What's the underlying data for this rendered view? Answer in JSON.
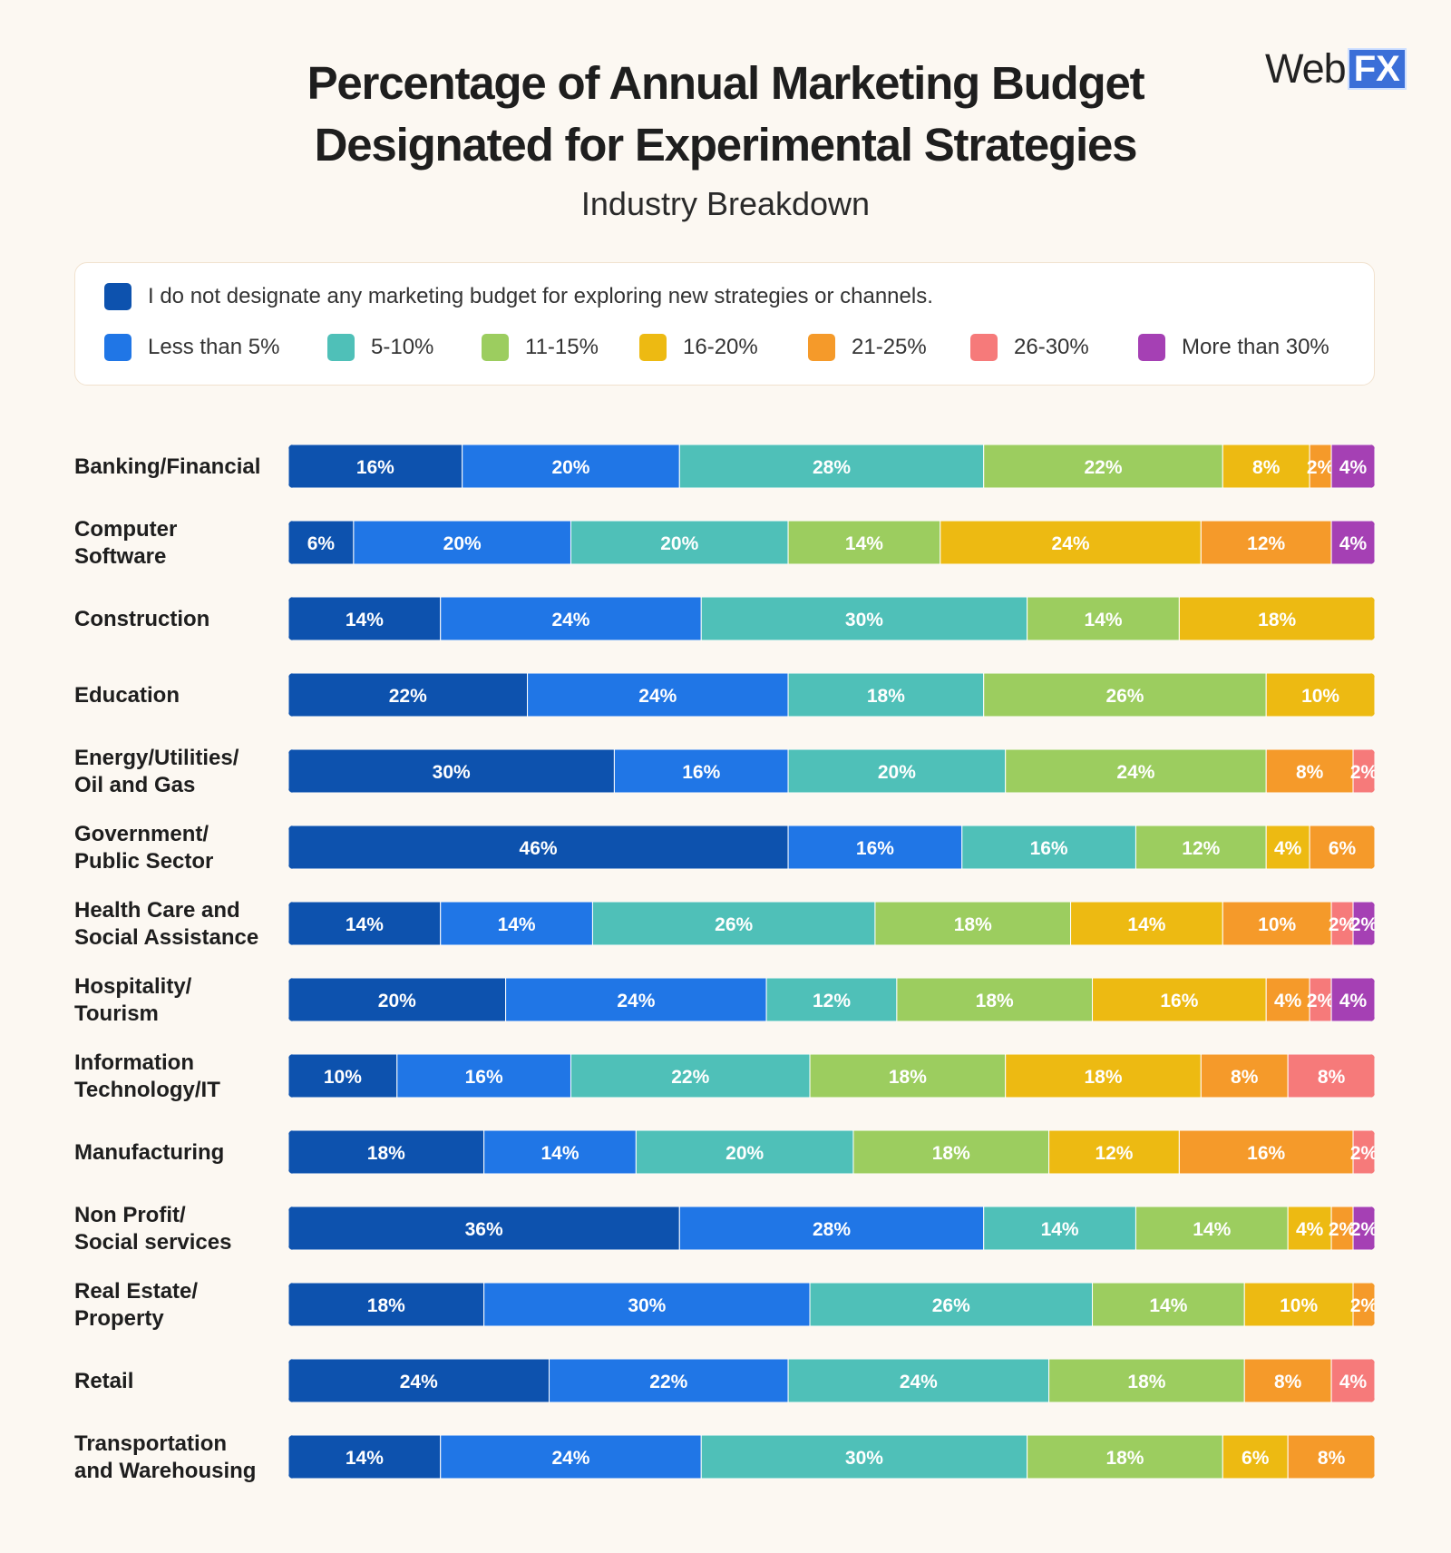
{
  "header": {
    "title_line1": "Percentage of Annual Marketing Budget",
    "title_line2": "Designated for Experimental Strategies",
    "subtitle": "Industry Breakdown",
    "logo_web": "Web",
    "logo_fx": "FX"
  },
  "chart_data": {
    "type": "bar",
    "orientation": "horizontal",
    "stacked": true,
    "title": "Percentage of Annual Marketing Budget Designated for Experimental Strategies",
    "subtitle": "Industry Breakdown",
    "xlabel": "",
    "ylabel": "",
    "xlim": [
      0,
      100
    ],
    "legend_position": "top",
    "categories": [
      [
        "Banking/Financial"
      ],
      [
        "Computer",
        "Software"
      ],
      [
        "Construction"
      ],
      [
        "Education"
      ],
      [
        "Energy/Utilities/",
        "Oil and Gas"
      ],
      [
        "Government/",
        "Public Sector"
      ],
      [
        "Health Care and",
        "Social Assistance"
      ],
      [
        "Hospitality/",
        "Tourism"
      ],
      [
        "Information",
        "Technology/IT"
      ],
      [
        "Manufacturing"
      ],
      [
        "Non Profit/",
        "Social services"
      ],
      [
        "Real Estate/",
        "Property"
      ],
      [
        "Retail"
      ],
      [
        "Transportation",
        "and Warehousing"
      ]
    ],
    "series": [
      {
        "name": "I do not designate any marketing budget for exploring new strategies or channels.",
        "color": "#0d52ae",
        "values": [
          16,
          6,
          14,
          22,
          30,
          46,
          14,
          20,
          10,
          18,
          36,
          18,
          24,
          14
        ]
      },
      {
        "name": "Less than 5%",
        "color": "#2076e6",
        "values": [
          20,
          20,
          24,
          24,
          16,
          16,
          14,
          24,
          16,
          14,
          28,
          30,
          22,
          24
        ]
      },
      {
        "name": "5-10%",
        "color": "#4fc0b8",
        "values": [
          28,
          20,
          30,
          18,
          20,
          16,
          26,
          12,
          22,
          20,
          14,
          26,
          24,
          30
        ]
      },
      {
        "name": "11-15%",
        "color": "#9ccd5f",
        "values": [
          22,
          14,
          14,
          26,
          24,
          12,
          18,
          18,
          18,
          18,
          14,
          14,
          18,
          18
        ]
      },
      {
        "name": "16-20%",
        "color": "#edba12",
        "values": [
          8,
          24,
          18,
          10,
          0,
          4,
          14,
          16,
          18,
          12,
          4,
          10,
          0,
          6
        ]
      },
      {
        "name": "21-25%",
        "color": "#f59a2a",
        "values": [
          2,
          12,
          0,
          0,
          8,
          6,
          10,
          4,
          8,
          16,
          2,
          2,
          8,
          8
        ]
      },
      {
        "name": "26-30%",
        "color": "#f67a7a",
        "values": [
          0,
          0,
          0,
          0,
          2,
          0,
          2,
          2,
          8,
          2,
          0,
          0,
          4,
          0
        ]
      },
      {
        "name": "More than 30%",
        "color": "#a540b4",
        "values": [
          4,
          4,
          0,
          0,
          0,
          0,
          2,
          4,
          0,
          0,
          2,
          0,
          0,
          0
        ]
      }
    ]
  }
}
